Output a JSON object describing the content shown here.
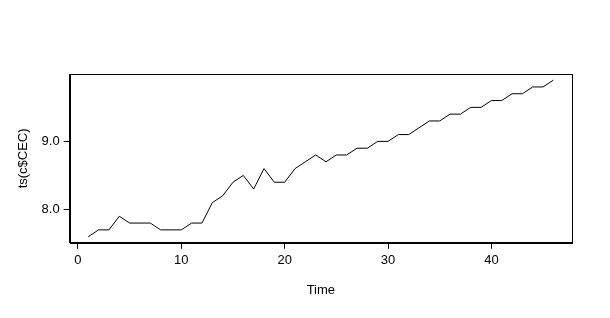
{
  "chart_data": {
    "type": "line",
    "x_label": "Time",
    "y_label": "ts(c$CEC)",
    "x": [
      1,
      2,
      3,
      4,
      5,
      6,
      7,
      8,
      9,
      10,
      11,
      12,
      13,
      14,
      15,
      16,
      17,
      18,
      19,
      20,
      21,
      22,
      23,
      24,
      25,
      26,
      27,
      28,
      29,
      30,
      31,
      32,
      33,
      34,
      35,
      36,
      37,
      38,
      39,
      40,
      41,
      42,
      43,
      44,
      45,
      46
    ],
    "values": [
      7.6,
      7.7,
      7.7,
      7.9,
      7.8,
      7.8,
      7.8,
      7.7,
      7.7,
      7.7,
      7.8,
      7.8,
      8.1,
      8.2,
      8.4,
      8.5,
      8.3,
      8.6,
      8.4,
      8.4,
      8.6,
      8.7,
      8.8,
      8.7,
      8.8,
      8.8,
      8.9,
      8.9,
      9.0,
      9.0,
      9.1,
      9.1,
      9.2,
      9.3,
      9.3,
      9.4,
      9.4,
      9.5,
      9.5,
      9.6,
      9.6,
      9.7,
      9.7,
      9.8,
      9.8,
      9.9
    ],
    "color": "#000000",
    "xlim": [
      -0.8,
      47.8
    ],
    "xticks": [
      0,
      10,
      20,
      30,
      40
    ],
    "ylim": [
      7.51,
      9.99
    ],
    "yticks": [
      {
        "value": 8,
        "label": "8.0"
      },
      {
        "value": 9,
        "label": "9.0"
      }
    ],
    "grid": false
  }
}
